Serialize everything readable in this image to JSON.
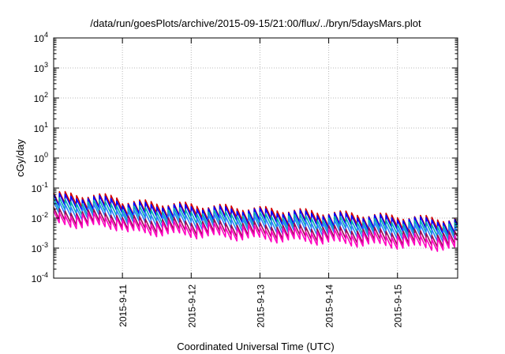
{
  "chart_data": {
    "type": "line",
    "title": "/data/run/goesPlots/archive/2015-09-15/21:00/flux/../bryn/5daysMars.plot",
    "xlabel": "Coordinated Universal Time (UTC)",
    "ylabel": "cGy/day",
    "y_scale": "log",
    "ylim": [
      0.0001,
      10000
    ],
    "y_ticks": [
      {
        "mantissa": "10",
        "exp": "-4",
        "value": 0.0001
      },
      {
        "mantissa": "10",
        "exp": "-3",
        "value": 0.001
      },
      {
        "mantissa": "10",
        "exp": "-2",
        "value": 0.01
      },
      {
        "mantissa": "10",
        "exp": "-1",
        "value": 0.1
      },
      {
        "mantissa": "10",
        "exp": "0",
        "value": 1
      },
      {
        "mantissa": "10",
        "exp": "1",
        "value": 10
      },
      {
        "mantissa": "10",
        "exp": "2",
        "value": 100
      },
      {
        "mantissa": "10",
        "exp": "3",
        "value": 1000
      },
      {
        "mantissa": "10",
        "exp": "4",
        "value": 10000
      }
    ],
    "xlim": [
      "2015-09-10 00:00",
      "2015-09-15 21:00"
    ],
    "x_ticks": [
      "2015-9-11",
      "2015-9-12",
      "2015-9-13",
      "2015-9-14",
      "2015-9-15"
    ],
    "grid": true,
    "cycles_per_day": 12,
    "series": [
      {
        "color": "#d40000",
        "start": 0.05,
        "end": 0.009,
        "early_factor": 1.35
      },
      {
        "color": "#0000ff",
        "start": 0.042,
        "end": 0.008,
        "early_factor": 1.35
      },
      {
        "color": "#00b0b0",
        "start": 0.03,
        "end": 0.006,
        "early_factor": 1.35
      },
      {
        "color": "#2a7fff",
        "start": 0.022,
        "end": 0.0045,
        "early_factor": 1.35
      },
      {
        "color": "#9b0a55",
        "start": 0.014,
        "end": 0.003,
        "early_factor": 1.35
      },
      {
        "color": "#ff00c0",
        "start": 0.011,
        "end": 0.0022,
        "early_factor": 1.35
      }
    ]
  }
}
